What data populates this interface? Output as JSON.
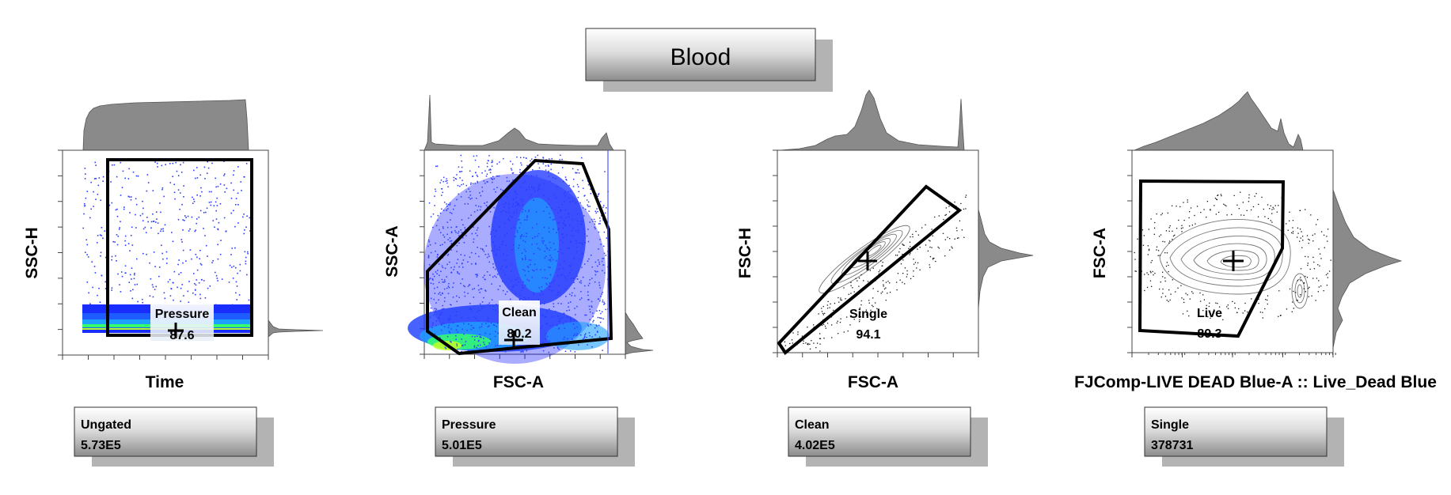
{
  "title": "Blood",
  "chart_data": [
    {
      "type": "scatter",
      "plot_style": "pseudocolor density dot plot",
      "xlabel": "Time",
      "ylabel": "SSC-H",
      "top_histogram": true,
      "right_histogram": true,
      "gate": {
        "name": "Pressure",
        "frequency": "87.6",
        "shape": "rectangle"
      },
      "parent": {
        "name": "Ungated",
        "count": "5.73E5"
      }
    },
    {
      "type": "scatter",
      "plot_style": "pseudocolor density dot plot",
      "xlabel": "FSC-A",
      "ylabel": "SSC-A",
      "top_histogram": true,
      "right_histogram": true,
      "gate": {
        "name": "Clean",
        "frequency": "80.2",
        "shape": "polygon"
      },
      "parent": {
        "name": "Pressure",
        "count": "5.01E5"
      }
    },
    {
      "type": "scatter",
      "plot_style": "contour plot with outliers",
      "xlabel": "FSC-A",
      "ylabel": "FSC-H",
      "top_histogram": true,
      "right_histogram": true,
      "gate": {
        "name": "Single",
        "frequency": "94.1",
        "shape": "polygon"
      },
      "parent": {
        "name": "Clean",
        "count": "4.02E5"
      }
    },
    {
      "type": "scatter",
      "plot_style": "contour plot with outliers",
      "xlabel": "FJComp-LIVE DEAD Blue-A :: Live_Dead Blue",
      "ylabel": "FSC-A",
      "top_histogram": true,
      "right_histogram": true,
      "gate": {
        "name": "Live",
        "frequency": "89.3",
        "shape": "polygon"
      },
      "parent": {
        "name": "Single",
        "count": "378731"
      }
    }
  ],
  "colors": {
    "density_low": "#0000ff",
    "density_mid": "#00c8ff",
    "density_high": "#00ff00",
    "gate": "#000000",
    "histogram": "#8a8a8a"
  }
}
